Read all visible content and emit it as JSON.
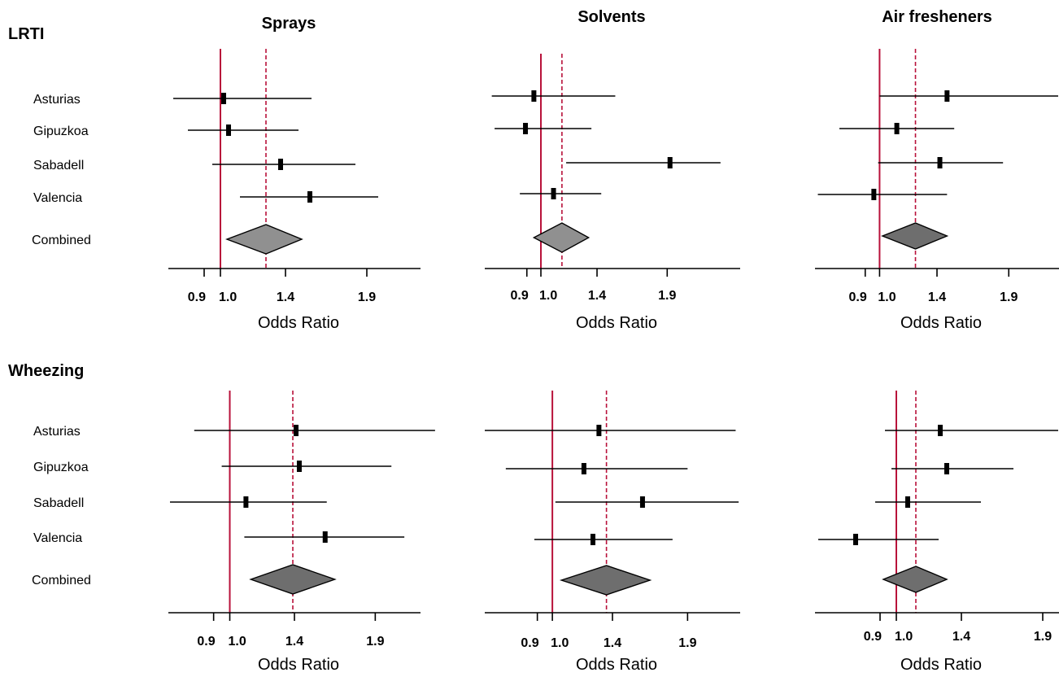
{
  "row_labels": [
    "LRTI",
    "Wheezing"
  ],
  "study_labels": [
    "Asturias",
    "Gipuzkoa",
    "Sabadell",
    "Valencia",
    "Combined"
  ],
  "colors": {
    "reference_line": "#b8113a",
    "ci_line": "#000000",
    "diamond_light": "#909090",
    "diamond_dark": "#6e6e6e"
  },
  "chart_data": [
    {
      "type": "forest",
      "outcome": "LRTI",
      "title": "Sprays",
      "xlabel": "Odds Ratio",
      "x_ticks": [
        "0.9",
        "1.0",
        "1.4",
        "1.9"
      ],
      "xlim": [
        0.68,
        2.23
      ],
      "reference_line": 1.0,
      "combined_line": 1.28,
      "studies": [
        {
          "name": "Asturias",
          "or": 1.02,
          "lower": 0.71,
          "upper": 1.56
        },
        {
          "name": "Gipuzkoa",
          "or": 1.05,
          "lower": 0.8,
          "upper": 1.48
        },
        {
          "name": "Sabadell",
          "or": 1.37,
          "lower": 0.95,
          "upper": 1.83
        },
        {
          "name": "Valencia",
          "or": 1.55,
          "lower": 1.12,
          "upper": 1.97
        }
      ],
      "combined": {
        "or": 1.28,
        "lower": 1.04,
        "upper": 1.5
      }
    },
    {
      "type": "forest",
      "outcome": "LRTI",
      "title": "Solvents",
      "xlabel": "Odds Ratio",
      "x_ticks": [
        "0.9",
        "1.0",
        "1.4",
        "1.9"
      ],
      "xlim": [
        0.6,
        2.42
      ],
      "reference_line": 1.0,
      "combined_line": 1.15,
      "studies": [
        {
          "name": "Asturias",
          "or": 0.95,
          "lower": 0.65,
          "upper": 1.53
        },
        {
          "name": "Gipuzkoa",
          "or": 0.89,
          "lower": 0.67,
          "upper": 1.36
        },
        {
          "name": "Sabadell",
          "or": 1.92,
          "lower": 1.18,
          "upper": 2.28
        },
        {
          "name": "Valencia",
          "or": 1.09,
          "lower": 0.85,
          "upper": 1.43
        }
      ],
      "combined": {
        "or": 1.15,
        "lower": 0.95,
        "upper": 1.34
      }
    },
    {
      "type": "forest",
      "outcome": "LRTI",
      "title": "Air fresheners",
      "xlabel": "Odds Ratio",
      "x_ticks": [
        "0.9",
        "1.0",
        "1.4",
        "1.9"
      ],
      "xlim": [
        0.55,
        2.25
      ],
      "reference_line": 1.0,
      "combined_line": 1.25,
      "studies": [
        {
          "name": "Asturias",
          "or": 1.47,
          "lower": 1.0,
          "upper": 2.25
        },
        {
          "name": "Gipuzkoa",
          "or": 1.12,
          "lower": 0.72,
          "upper": 1.52
        },
        {
          "name": "Sabadell",
          "or": 1.42,
          "lower": 0.99,
          "upper": 1.86
        },
        {
          "name": "Valencia",
          "or": 0.96,
          "lower": 0.57,
          "upper": 1.47
        }
      ],
      "combined": {
        "or": 1.25,
        "lower": 1.02,
        "upper": 1.47
      }
    },
    {
      "type": "forest",
      "outcome": "Wheezing",
      "title": "",
      "xlabel": "Odds Ratio",
      "x_ticks": [
        "0.9",
        "1.0",
        "1.4",
        "1.9"
      ],
      "xlim": [
        0.62,
        2.18
      ],
      "reference_line": 1.0,
      "combined_line": 1.39,
      "studies": [
        {
          "name": "Asturias",
          "or": 1.41,
          "lower": 0.78,
          "upper": 2.27
        },
        {
          "name": "Gipuzkoa",
          "or": 1.43,
          "lower": 0.95,
          "upper": 2.0
        },
        {
          "name": "Sabadell",
          "or": 1.1,
          "lower": 0.63,
          "upper": 1.6
        },
        {
          "name": "Valencia",
          "or": 1.59,
          "lower": 1.09,
          "upper": 2.08
        }
      ],
      "combined": {
        "or": 1.39,
        "lower": 1.13,
        "upper": 1.65
      }
    },
    {
      "type": "forest",
      "outcome": "Wheezing",
      "title": "",
      "xlabel": "Odds Ratio",
      "x_ticks": [
        "0.9",
        "1.0",
        "1.4",
        "1.9"
      ],
      "xlim": [
        0.55,
        2.25
      ],
      "reference_line": 1.0,
      "combined_line": 1.36,
      "studies": [
        {
          "name": "Asturias",
          "or": 1.31,
          "lower": 0.55,
          "upper": 2.22
        },
        {
          "name": "Gipuzkoa",
          "or": 1.21,
          "lower": 0.69,
          "upper": 1.9
        },
        {
          "name": "Sabadell",
          "or": 1.6,
          "lower": 1.02,
          "upper": 2.24
        },
        {
          "name": "Valencia",
          "or": 1.27,
          "lower": 0.88,
          "upper": 1.8
        }
      ],
      "combined": {
        "or": 1.36,
        "lower": 1.06,
        "upper": 1.65
      }
    },
    {
      "type": "forest",
      "outcome": "Wheezing",
      "title": "",
      "xlabel": "Odds Ratio",
      "x_ticks": [
        "0.9",
        "1.0",
        "1.4",
        "1.9"
      ],
      "xlim": [
        0.5,
        2.0
      ],
      "reference_line": 1.0,
      "combined_line": 1.12,
      "studies": [
        {
          "name": "Asturias",
          "or": 1.27,
          "lower": 0.93,
          "upper": 2.0
        },
        {
          "name": "Gipuzkoa",
          "or": 1.31,
          "lower": 0.97,
          "upper": 1.72
        },
        {
          "name": "Sabadell",
          "or": 1.07,
          "lower": 0.87,
          "upper": 1.52
        },
        {
          "name": "Valencia",
          "or": 0.75,
          "lower": 0.52,
          "upper": 1.26
        }
      ],
      "combined": {
        "or": 1.12,
        "lower": 0.92,
        "upper": 1.31
      }
    }
  ]
}
